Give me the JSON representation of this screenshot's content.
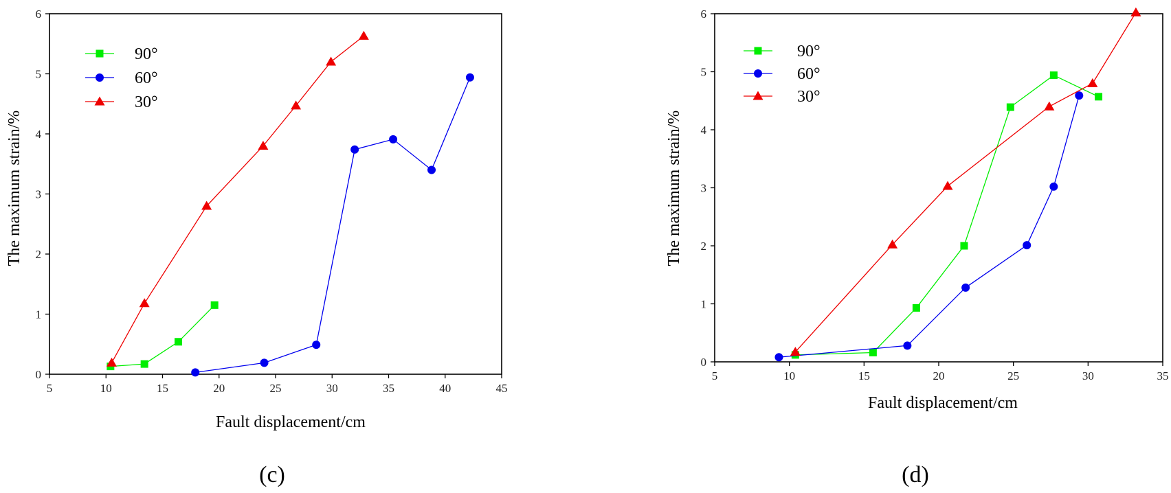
{
  "chart_data": [
    {
      "type": "line",
      "panel": "c",
      "panel_label": "(c)",
      "title": "",
      "xlabel": "Fault displacement/cm",
      "ylabel": "The maximum strain/%",
      "xlim": [
        5,
        45
      ],
      "ylim": [
        0,
        6
      ],
      "xticks": [
        "5",
        "10",
        "15",
        "20",
        "25",
        "30",
        "35",
        "40",
        "45"
      ],
      "yticks": [
        "0",
        "1",
        "2",
        "3",
        "4",
        "5",
        "6"
      ],
      "legend_position": "top-left",
      "series": [
        {
          "name": "90°",
          "color": "#00ee00",
          "marker": "square",
          "x": [
            10.4,
            13.4,
            16.4,
            19.6
          ],
          "y": [
            0.13,
            0.17,
            0.54,
            1.15
          ]
        },
        {
          "name": "60°",
          "color": "#0000ee",
          "marker": "circle",
          "x": [
            17.9,
            24.0,
            28.6,
            32.0,
            35.4,
            38.8,
            42.2
          ],
          "y": [
            0.03,
            0.19,
            0.49,
            3.74,
            3.91,
            3.4,
            4.94
          ]
        },
        {
          "name": "30°",
          "color": "#ee0000",
          "marker": "triangle",
          "x": [
            10.5,
            13.4,
            18.9,
            23.9,
            26.8,
            29.9,
            32.8
          ],
          "y": [
            0.19,
            1.18,
            2.8,
            3.8,
            4.47,
            5.2,
            5.63
          ]
        }
      ]
    },
    {
      "type": "line",
      "panel": "d",
      "panel_label": "(d)",
      "title": "",
      "xlabel": "Fault displacement/cm",
      "ylabel": "The maximum strain/%",
      "xlim": [
        5,
        35
      ],
      "ylim": [
        0,
        6
      ],
      "xticks": [
        "5",
        "10",
        "15",
        "20",
        "25",
        "30",
        "35"
      ],
      "yticks": [
        "0",
        "1",
        "2",
        "3",
        "4",
        "5",
        "6"
      ],
      "legend_position": "top-left",
      "series": [
        {
          "name": "90°",
          "color": "#00ee00",
          "marker": "square",
          "x": [
            10.4,
            15.6,
            18.5,
            21.7,
            24.8,
            27.7,
            30.7
          ],
          "y": [
            0.12,
            0.16,
            0.93,
            2.0,
            4.39,
            4.94,
            4.57
          ]
        },
        {
          "name": "60°",
          "color": "#0000ee",
          "marker": "circle",
          "x": [
            9.3,
            17.9,
            21.8,
            25.9,
            27.7,
            29.4
          ],
          "y": [
            0.08,
            0.28,
            1.28,
            2.01,
            3.02,
            4.59
          ]
        },
        {
          "name": "30°",
          "color": "#ee0000",
          "marker": "triangle",
          "x": [
            10.4,
            16.9,
            20.6,
            27.4,
            30.3,
            33.2
          ],
          "y": [
            0.17,
            2.02,
            3.03,
            4.4,
            4.8,
            6.02
          ]
        }
      ]
    }
  ]
}
